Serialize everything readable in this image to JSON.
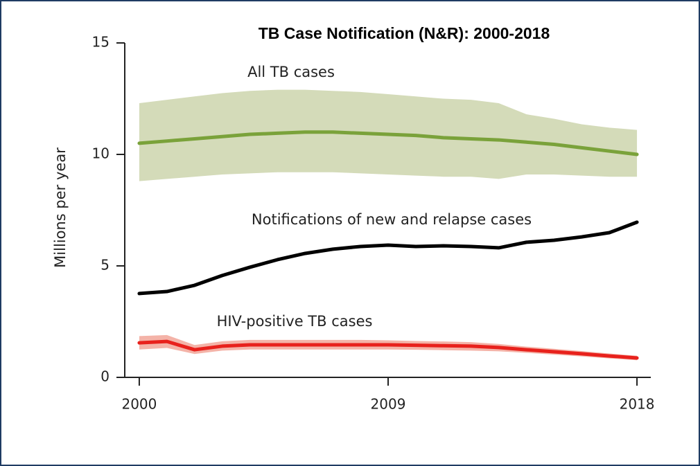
{
  "chart_data": {
    "type": "line",
    "title": "TB Case Notification (N&R): 2000-2018",
    "y_label": "Millions per year",
    "x": [
      2000,
      2001,
      2002,
      2003,
      2004,
      2005,
      2006,
      2007,
      2008,
      2009,
      2010,
      2011,
      2012,
      2013,
      2014,
      2015,
      2016,
      2017,
      2018
    ],
    "series": [
      {
        "name": "All TB cases",
        "color": "#7aa23a",
        "band_color": "#d4dbb9",
        "values": [
          10.5,
          10.6,
          10.7,
          10.8,
          10.9,
          10.95,
          11.0,
          11.0,
          10.95,
          10.9,
          10.85,
          10.75,
          10.7,
          10.65,
          10.55,
          10.45,
          10.3,
          10.15,
          10.0
        ],
        "upper": [
          12.3,
          12.45,
          12.6,
          12.75,
          12.85,
          12.9,
          12.9,
          12.85,
          12.8,
          12.7,
          12.6,
          12.5,
          12.45,
          12.3,
          11.8,
          11.6,
          11.35,
          11.2,
          11.1
        ],
        "lower": [
          8.8,
          8.9,
          9.0,
          9.1,
          9.15,
          9.2,
          9.2,
          9.2,
          9.15,
          9.1,
          9.05,
          9.0,
          9.0,
          8.9,
          9.1,
          9.1,
          9.05,
          9.0,
          9.0
        ]
      },
      {
        "name": "Notifications of new and relapse cases",
        "color": "#000000",
        "values": [
          3.76,
          3.85,
          4.13,
          4.57,
          4.94,
          5.28,
          5.56,
          5.75,
          5.87,
          5.93,
          5.87,
          5.9,
          5.87,
          5.81,
          6.06,
          6.15,
          6.3,
          6.49,
          6.96
        ]
      },
      {
        "name": "HIV-positive TB cases",
        "color": "#e8211c",
        "band_color": "#f4b3a8",
        "values": [
          1.55,
          1.61,
          1.24,
          1.4,
          1.46,
          1.46,
          1.46,
          1.46,
          1.46,
          1.46,
          1.44,
          1.42,
          1.4,
          1.34,
          1.24,
          1.15,
          1.06,
          0.96,
          0.87
        ],
        "upper": [
          1.85,
          1.9,
          1.45,
          1.62,
          1.68,
          1.68,
          1.68,
          1.68,
          1.68,
          1.66,
          1.63,
          1.61,
          1.58,
          1.5,
          1.38,
          1.28,
          1.18,
          1.07,
          0.97
        ],
        "lower": [
          1.25,
          1.32,
          1.05,
          1.2,
          1.25,
          1.25,
          1.25,
          1.25,
          1.25,
          1.25,
          1.24,
          1.22,
          1.2,
          1.17,
          1.1,
          1.02,
          0.94,
          0.85,
          0.77
        ]
      }
    ],
    "xlim": [
      1999.5,
      2018.5
    ],
    "xticks": [
      2000,
      2009,
      2018
    ],
    "ylim": [
      0,
      15
    ],
    "yticks": [
      0,
      5,
      10,
      15
    ]
  }
}
